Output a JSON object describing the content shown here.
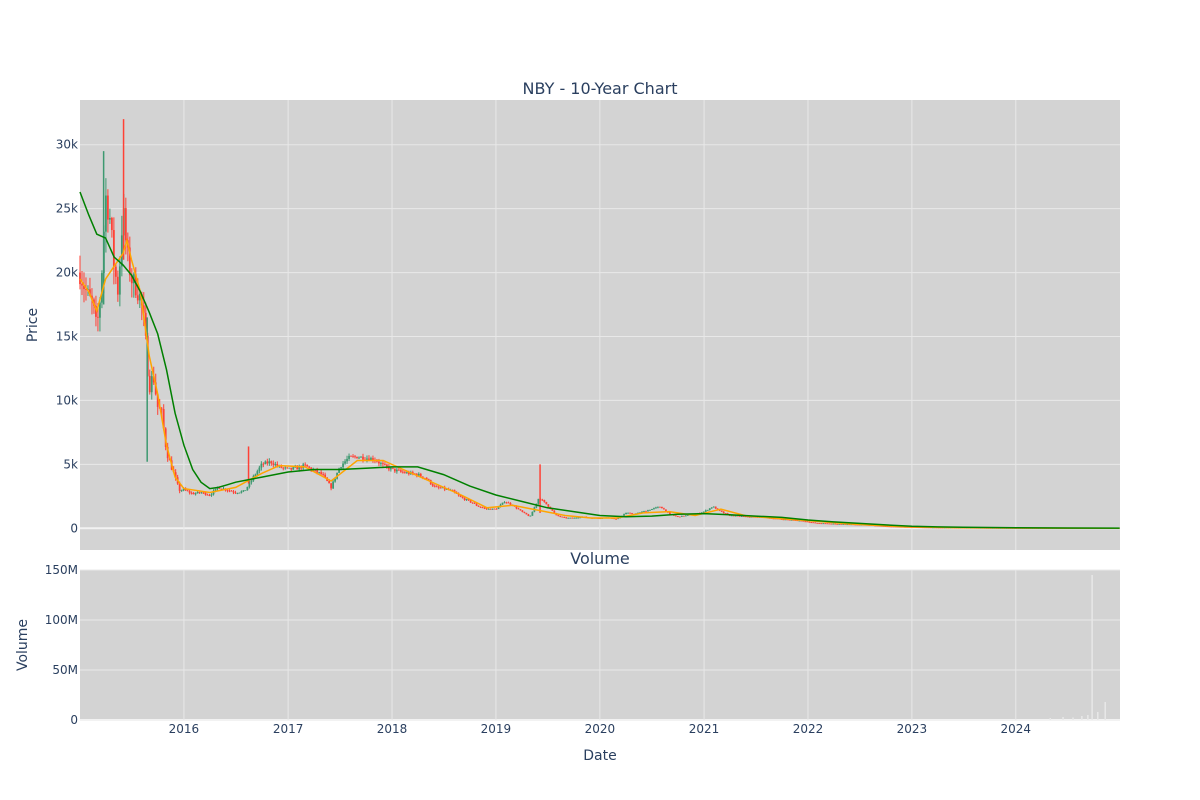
{
  "chart_data": [
    {
      "type": "candlestick",
      "title": "NBY - 10-Year Chart",
      "ylabel": "Price",
      "xlabel": "",
      "x_range": [
        "2015-01-01",
        "2025-01-01"
      ],
      "ylim": [
        -1700,
        33500
      ],
      "y_ticks": [
        0,
        5000,
        10000,
        15000,
        20000,
        25000,
        30000
      ],
      "y_tick_labels": [
        "0",
        "5k",
        "10k",
        "15k",
        "20k",
        "25k",
        "30k"
      ],
      "grid": true,
      "legend": "none",
      "colors": {
        "plot_bg": "#d3d3d3",
        "grid": "#e8e8e8",
        "increasing": "#3d9970",
        "decreasing": "#ff4136",
        "ma_short": "#ffa500",
        "ma_long": "#008000"
      },
      "close_series": [
        [
          "2015-01-01",
          20000
        ],
        [
          "2015-01-15",
          19000
        ],
        [
          "2015-02-01",
          18000
        ],
        [
          "2015-02-15",
          17500
        ],
        [
          "2015-03-01",
          15500
        ],
        [
          "2015-03-15",
          18500
        ],
        [
          "2015-04-01",
          26000
        ],
        [
          "2015-04-15",
          24500
        ],
        [
          "2015-05-01",
          20500
        ],
        [
          "2015-05-15",
          18500
        ],
        [
          "2015-06-01",
          25000
        ],
        [
          "2015-06-15",
          21500
        ],
        [
          "2015-07-01",
          19500
        ],
        [
          "2015-07-15",
          19000
        ],
        [
          "2015-08-01",
          18000
        ],
        [
          "2015-08-15",
          16000
        ],
        [
          "2015-09-01",
          11000
        ],
        [
          "2015-09-15",
          12000
        ],
        [
          "2015-10-01",
          9500
        ],
        [
          "2015-10-15",
          9000
        ],
        [
          "2015-11-01",
          6000
        ],
        [
          "2015-11-15",
          5000
        ],
        [
          "2015-12-01",
          4000
        ],
        [
          "2015-12-15",
          3000
        ],
        [
          "2016-01-01",
          3000
        ],
        [
          "2016-02-01",
          2700
        ],
        [
          "2016-03-01",
          2800
        ],
        [
          "2016-04-01",
          2600
        ],
        [
          "2016-05-01",
          3200
        ],
        [
          "2016-06-01",
          3000
        ],
        [
          "2016-07-01",
          2800
        ],
        [
          "2016-08-01",
          2900
        ],
        [
          "2016-09-01",
          4000
        ],
        [
          "2016-10-01",
          5000
        ],
        [
          "2016-11-01",
          5200
        ],
        [
          "2016-12-01",
          4800
        ],
        [
          "2017-01-01",
          4600
        ],
        [
          "2017-02-01",
          4700
        ],
        [
          "2017-03-01",
          4900
        ],
        [
          "2017-04-01",
          4500
        ],
        [
          "2017-05-01",
          4200
        ],
        [
          "2017-06-01",
          3200
        ],
        [
          "2017-07-01",
          4800
        ],
        [
          "2017-08-01",
          5500
        ],
        [
          "2017-09-01",
          5600
        ],
        [
          "2017-10-01",
          5500
        ],
        [
          "2017-11-01",
          5400
        ],
        [
          "2017-12-01",
          4900
        ],
        [
          "2018-01-01",
          4600
        ],
        [
          "2018-02-01",
          4400
        ],
        [
          "2018-03-01",
          4300
        ],
        [
          "2018-04-01",
          4200
        ],
        [
          "2018-05-01",
          3900
        ],
        [
          "2018-06-01",
          3200
        ],
        [
          "2018-07-01",
          3100
        ],
        [
          "2018-08-01",
          2900
        ],
        [
          "2018-09-01",
          2400
        ],
        [
          "2018-10-01",
          2100
        ],
        [
          "2018-11-01",
          1700
        ],
        [
          "2018-12-01",
          1500
        ],
        [
          "2019-01-01",
          1500
        ],
        [
          "2019-02-01",
          2100
        ],
        [
          "2019-03-01",
          1800
        ],
        [
          "2019-04-01",
          1300
        ],
        [
          "2019-05-01",
          900
        ],
        [
          "2019-06-01",
          2400
        ],
        [
          "2019-07-01",
          1800
        ],
        [
          "2019-08-01",
          1000
        ],
        [
          "2019-09-01",
          800
        ],
        [
          "2019-10-01",
          800
        ],
        [
          "2019-11-01",
          900
        ],
        [
          "2019-12-01",
          800
        ],
        [
          "2020-01-01",
          800
        ],
        [
          "2020-02-01",
          850
        ],
        [
          "2020-03-01",
          700
        ],
        [
          "2020-04-01",
          1200
        ],
        [
          "2020-05-01",
          1100
        ],
        [
          "2020-06-01",
          1300
        ],
        [
          "2020-07-01",
          1500
        ],
        [
          "2020-08-01",
          1700
        ],
        [
          "2020-09-01",
          1100
        ],
        [
          "2020-10-01",
          900
        ],
        [
          "2020-11-01",
          1000
        ],
        [
          "2020-12-01",
          1100
        ],
        [
          "2021-01-01",
          1300
        ],
        [
          "2021-02-01",
          1700
        ],
        [
          "2021-03-01",
          1300
        ],
        [
          "2021-04-01",
          1000
        ],
        [
          "2021-06-01",
          900
        ],
        [
          "2021-08-01",
          850
        ],
        [
          "2021-10-01",
          700
        ],
        [
          "2021-12-01",
          600
        ],
        [
          "2022-02-01",
          400
        ],
        [
          "2022-04-01",
          350
        ],
        [
          "2022-06-01",
          300
        ],
        [
          "2022-08-01",
          250
        ],
        [
          "2022-10-01",
          150
        ],
        [
          "2022-12-01",
          100
        ],
        [
          "2023-03-01",
          60
        ],
        [
          "2023-06-01",
          40
        ],
        [
          "2023-09-01",
          30
        ],
        [
          "2023-12-01",
          20
        ],
        [
          "2024-03-01",
          15
        ],
        [
          "2024-06-01",
          10
        ],
        [
          "2024-09-01",
          8
        ],
        [
          "2024-12-31",
          5
        ]
      ],
      "ma_short_series": [
        [
          "2015-01-01",
          19500
        ],
        [
          "2015-02-01",
          18500
        ],
        [
          "2015-03-01",
          17000
        ],
        [
          "2015-04-01",
          19500
        ],
        [
          "2015-05-01",
          20500
        ],
        [
          "2015-06-01",
          21500
        ],
        [
          "2015-06-15",
          22500
        ],
        [
          "2015-07-01",
          21000
        ],
        [
          "2015-08-01",
          18500
        ],
        [
          "2015-09-01",
          13500
        ],
        [
          "2015-10-01",
          10500
        ],
        [
          "2015-11-01",
          6500
        ],
        [
          "2015-12-01",
          4000
        ],
        [
          "2016-01-01",
          3100
        ],
        [
          "2016-04-01",
          2800
        ],
        [
          "2016-07-01",
          3200
        ],
        [
          "2016-10-01",
          4300
        ],
        [
          "2016-12-01",
          4900
        ],
        [
          "2017-03-01",
          4800
        ],
        [
          "2017-06-01",
          3700
        ],
        [
          "2017-09-01",
          5300
        ],
        [
          "2017-12-01",
          5300
        ],
        [
          "2018-03-01",
          4400
        ],
        [
          "2018-06-01",
          3500
        ],
        [
          "2018-09-01",
          2600
        ],
        [
          "2018-12-01",
          1600
        ],
        [
          "2019-03-01",
          1800
        ],
        [
          "2019-06-01",
          1400
        ],
        [
          "2019-09-01",
          1000
        ],
        [
          "2019-12-01",
          800
        ],
        [
          "2020-03-01",
          800
        ],
        [
          "2020-06-01",
          1200
        ],
        [
          "2020-09-01",
          1300
        ],
        [
          "2020-12-01",
          1000
        ],
        [
          "2021-03-01",
          1500
        ],
        [
          "2021-06-01",
          950
        ],
        [
          "2021-12-01",
          650
        ],
        [
          "2022-06-01",
          330
        ],
        [
          "2022-12-01",
          120
        ],
        [
          "2023-06-01",
          50
        ],
        [
          "2024-01-01",
          20
        ],
        [
          "2024-12-31",
          6
        ]
      ],
      "ma_long_series": [
        [
          "2015-01-01",
          26300
        ],
        [
          "2015-02-01",
          24500
        ],
        [
          "2015-03-01",
          23000
        ],
        [
          "2015-04-01",
          22700
        ],
        [
          "2015-05-01",
          21200
        ],
        [
          "2015-06-01",
          20600
        ],
        [
          "2015-07-01",
          19800
        ],
        [
          "2015-08-01",
          18500
        ],
        [
          "2015-09-01",
          16900
        ],
        [
          "2015-10-01",
          15200
        ],
        [
          "2015-11-01",
          12400
        ],
        [
          "2015-12-01",
          9000
        ],
        [
          "2016-01-01",
          6500
        ],
        [
          "2016-02-01",
          4600
        ],
        [
          "2016-03-01",
          3600
        ],
        [
          "2016-04-01",
          3100
        ],
        [
          "2016-05-01",
          3200
        ],
        [
          "2016-06-01",
          3400
        ],
        [
          "2016-07-01",
          3600
        ],
        [
          "2016-10-01",
          4000
        ],
        [
          "2017-01-01",
          4400
        ],
        [
          "2017-04-01",
          4600
        ],
        [
          "2017-07-01",
          4600
        ],
        [
          "2017-10-01",
          4700
        ],
        [
          "2018-01-01",
          4800
        ],
        [
          "2018-04-01",
          4800
        ],
        [
          "2018-07-01",
          4200
        ],
        [
          "2018-10-01",
          3300
        ],
        [
          "2019-01-01",
          2600
        ],
        [
          "2019-04-01",
          2100
        ],
        [
          "2019-07-01",
          1600
        ],
        [
          "2019-10-01",
          1300
        ],
        [
          "2020-01-01",
          1000
        ],
        [
          "2020-04-01",
          900
        ],
        [
          "2020-07-01",
          950
        ],
        [
          "2020-10-01",
          1100
        ],
        [
          "2021-01-01",
          1150
        ],
        [
          "2021-04-01",
          1050
        ],
        [
          "2021-07-01",
          950
        ],
        [
          "2021-10-01",
          850
        ],
        [
          "2022-01-01",
          650
        ],
        [
          "2022-04-01",
          500
        ],
        [
          "2022-07-01",
          380
        ],
        [
          "2022-10-01",
          260
        ],
        [
          "2023-01-01",
          160
        ],
        [
          "2023-04-01",
          110
        ],
        [
          "2023-07-01",
          80
        ],
        [
          "2024-01-01",
          40
        ],
        [
          "2024-07-01",
          20
        ],
        [
          "2024-12-31",
          10
        ]
      ]
    },
    {
      "type": "bar",
      "title": "Volume",
      "ylabel": "Volume",
      "xlabel": "Date",
      "x_range": [
        "2015-01-01",
        "2025-01-01"
      ],
      "ylim": [
        0,
        150000000
      ],
      "y_ticks": [
        0,
        50000000,
        100000000,
        150000000
      ],
      "y_tick_labels": [
        "0",
        "50M",
        "100M",
        "150M"
      ],
      "x_ticks": [
        "2016-01-01",
        "2017-01-01",
        "2018-01-01",
        "2019-01-01",
        "2020-01-01",
        "2021-01-01",
        "2022-01-01",
        "2023-01-01",
        "2024-01-01"
      ],
      "x_tick_labels": [
        "2016",
        "2017",
        "2018",
        "2019",
        "2020",
        "2021",
        "2022",
        "2023",
        "2024"
      ],
      "grid": true,
      "bar_color": "#e8e8e8",
      "points": [
        [
          "2024-05-01",
          2000000
        ],
        [
          "2024-06-15",
          3000000
        ],
        [
          "2024-07-20",
          2500000
        ],
        [
          "2024-08-20",
          4000000
        ],
        [
          "2024-09-10",
          5000000
        ],
        [
          "2024-09-25",
          145000000
        ],
        [
          "2024-10-15",
          8000000
        ],
        [
          "2024-11-10",
          18000000
        ]
      ]
    }
  ]
}
